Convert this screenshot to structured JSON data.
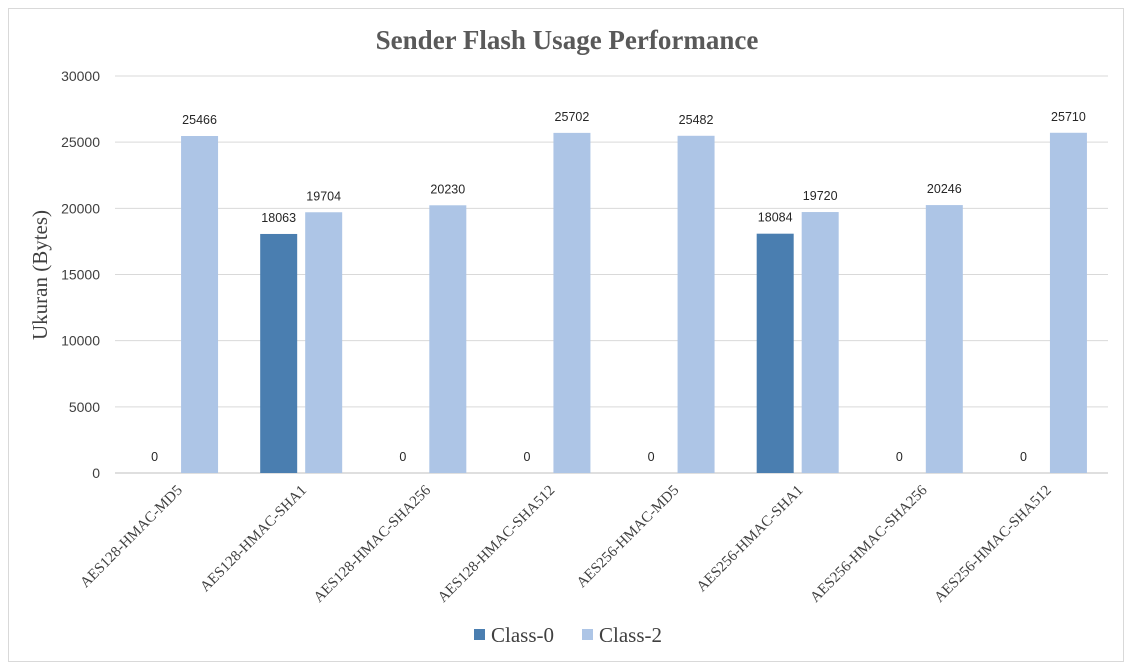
{
  "chart_data": {
    "type": "bar",
    "title": "Sender Flash Usage Performance",
    "xlabel": "",
    "ylabel": "Ukuran (Bytes)",
    "ylim": [
      0,
      30000
    ],
    "yticks": [
      0,
      5000,
      10000,
      15000,
      20000,
      25000,
      30000
    ],
    "grid": true,
    "legend_position": "bottom",
    "categories": [
      "AES128-HMAC-MD5",
      "AES128-HMAC-SHA1",
      "AES128-HMAC-SHA256",
      "AES128-HMAC-SHA512",
      "AES256-HMAC-MD5",
      "AES256-HMAC-SHA1",
      "AES256-HMAC-SHA256",
      "AES256-HMAC-SHA512"
    ],
    "series": [
      {
        "name": "Class-0",
        "color": "#4a7eb0",
        "values": [
          0,
          18063,
          0,
          0,
          0,
          18084,
          0,
          0
        ]
      },
      {
        "name": "Class-2",
        "color": "#adc5e6",
        "values": [
          25466,
          19704,
          20230,
          25702,
          25482,
          19720,
          20246,
          25710
        ]
      }
    ]
  }
}
